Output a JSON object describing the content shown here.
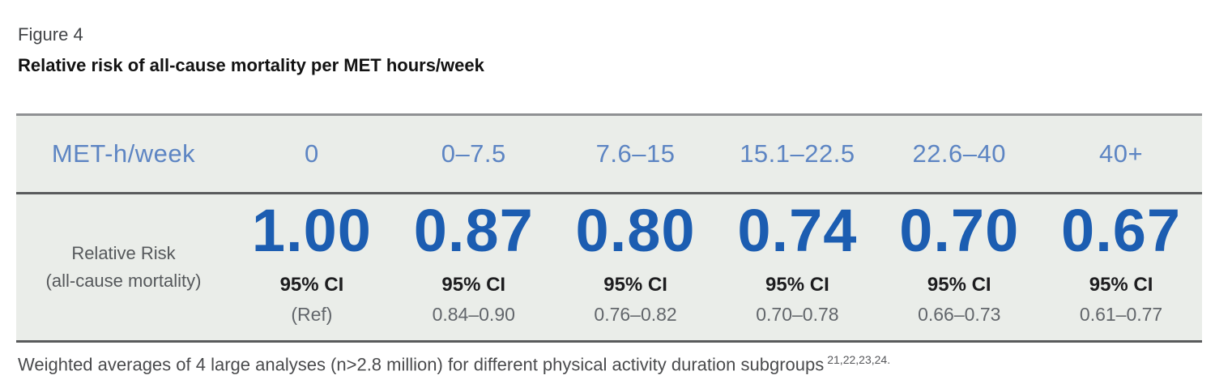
{
  "figure": {
    "label": "Figure 4",
    "title": "Relative risk of all-cause mortality per MET hours/week"
  },
  "table": {
    "header_label": "MET-h/week",
    "row_label_line1": "Relative Risk",
    "row_label_line2": "(all-cause mortality)",
    "columns": [
      {
        "met": "0",
        "rr": "1.00",
        "ci_label": "95% CI",
        "ci": "(Ref)"
      },
      {
        "met": "0–7.5",
        "rr": "0.87",
        "ci_label": "95% CI",
        "ci": "0.84–0.90"
      },
      {
        "met": "7.6–15",
        "rr": "0.80",
        "ci_label": "95% CI",
        "ci": "0.76–0.82"
      },
      {
        "met": "15.1–22.5",
        "rr": "0.74",
        "ci_label": "95% CI",
        "ci": "0.70–0.78"
      },
      {
        "met": "22.6–40",
        "rr": "0.70",
        "ci_label": "95% CI",
        "ci": "0.66–0.73"
      },
      {
        "met": "40+",
        "rr": "0.67",
        "ci_label": "95% CI",
        "ci": "0.61–0.77"
      }
    ]
  },
  "footnote": {
    "text": "Weighted averages of 4 large analyses (n>2.8 million) for different physical activity duration subgroups",
    "superscript": "21,22,23,24."
  },
  "colors": {
    "header_text_blue": "#5d85c3",
    "rr_value_blue": "#1c5db1",
    "row_background": "#eaede9",
    "rule_dark": "#595b5c",
    "rule_top": "#8f9193",
    "ci_range_gray": "#62666b",
    "row_label_gray": "#55585b"
  },
  "chart_data": {
    "type": "table",
    "title": "Relative risk of all-cause mortality per MET hours/week",
    "x_header": "MET-h/week",
    "categories": [
      "0",
      "0–7.5",
      "7.6–15",
      "15.1–22.5",
      "22.6–40",
      "40+"
    ],
    "series": [
      {
        "name": "Relative Risk (all-cause mortality)",
        "values": [
          1.0,
          0.87,
          0.8,
          0.74,
          0.7,
          0.67
        ]
      },
      {
        "name": "95% CI",
        "values": [
          "(Ref)",
          "0.84–0.90",
          "0.76–0.82",
          "0.70–0.78",
          "0.66–0.73",
          "0.61–0.77"
        ]
      }
    ],
    "footnote": "Weighted averages of 4 large analyses (n>2.8 million) for different physical activity duration subgroups 21,22,23,24."
  }
}
